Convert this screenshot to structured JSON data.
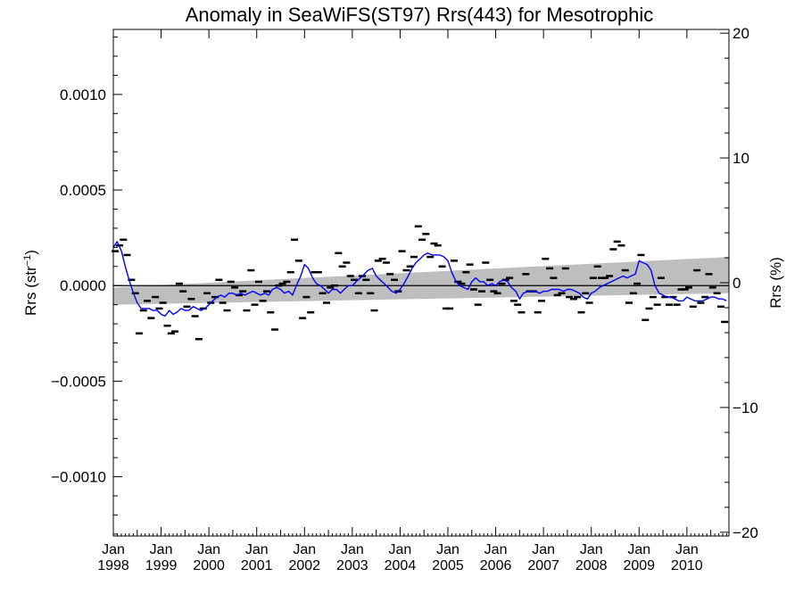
{
  "chart_data": {
    "type": "line",
    "title": "Anomaly in SeaWiFS(ST97) Rrs(443) for Mesotrophic",
    "ylabel_left_main": "Rrs (str",
    "ylabel_left_sup": "−1",
    "ylabel_left_close": ")",
    "ylabel_right": "Rrs (%)",
    "xlim": [
      1998.0,
      2010.88
    ],
    "ylim_left": [
      -0.00131,
      0.00134
    ],
    "ylim_right": [
      -20.3,
      20.3
    ],
    "grid": false,
    "x_ticks": [
      {
        "value": 1998,
        "line1": "Jan",
        "line2": "1998"
      },
      {
        "value": 1999,
        "line1": "Jan",
        "line2": "1999"
      },
      {
        "value": 2000,
        "line1": "Jan",
        "line2": "2000"
      },
      {
        "value": 2001,
        "line1": "Jan",
        "line2": "2001"
      },
      {
        "value": 2002,
        "line1": "Jan",
        "line2": "2002"
      },
      {
        "value": 2003,
        "line1": "Jan",
        "line2": "2003"
      },
      {
        "value": 2004,
        "line1": "Jan",
        "line2": "2004"
      },
      {
        "value": 2005,
        "line1": "Jan",
        "line2": "2005"
      },
      {
        "value": 2006,
        "line1": "Jan",
        "line2": "2006"
      },
      {
        "value": 2007,
        "line1": "Jan",
        "line2": "2007"
      },
      {
        "value": 2008,
        "line1": "Jan",
        "line2": "2008"
      },
      {
        "value": 2009,
        "line1": "Jan",
        "line2": "2009"
      },
      {
        "value": 2010,
        "line1": "Jan",
        "line2": "2010"
      }
    ],
    "y_ticks_left": [
      {
        "value": 0.001,
        "label": "0.0010"
      },
      {
        "value": 0.0005,
        "label": "0.0005"
      },
      {
        "value": 0.0,
        "label": "0.0000"
      },
      {
        "value": -0.0005,
        "label": "−0.0005"
      },
      {
        "value": -0.001,
        "label": "−0.0010"
      }
    ],
    "y_ticks_right": [
      {
        "value": 20,
        "label": "20"
      },
      {
        "value": 10,
        "label": "10"
      },
      {
        "value": 0,
        "label": "0"
      },
      {
        "value": -10,
        "label": "−10"
      },
      {
        "value": -20,
        "label": "−20"
      }
    ],
    "zero_line": 0.0,
    "trend_band": {
      "x": [
        1998.0,
        2010.88
      ],
      "upper": [
        -1e-05,
        0.00015
      ],
      "lower": [
        -0.0001,
        -4e-05
      ]
    },
    "colors": {
      "line": "#0000ff",
      "points": "#000000",
      "band": "#bebebe",
      "zero_line": "#000000"
    },
    "monthly_points": {
      "x": [
        1998.04,
        1998.13,
        1998.21,
        1998.29,
        1998.38,
        1998.46,
        1998.54,
        1998.63,
        1998.71,
        1998.79,
        1998.88,
        1998.96,
        1999.04,
        1999.13,
        1999.21,
        1999.29,
        1999.38,
        1999.46,
        1999.54,
        1999.63,
        1999.71,
        1999.79,
        1999.88,
        1999.96,
        2000.04,
        2000.13,
        2000.21,
        2000.29,
        2000.38,
        2000.46,
        2000.54,
        2000.63,
        2000.71,
        2000.79,
        2000.88,
        2000.96,
        2001.04,
        2001.13,
        2001.21,
        2001.29,
        2001.38,
        2001.46,
        2001.54,
        2001.63,
        2001.71,
        2001.79,
        2001.88,
        2001.96,
        2002.04,
        2002.13,
        2002.21,
        2002.29,
        2002.38,
        2002.46,
        2002.54,
        2002.63,
        2002.71,
        2002.79,
        2002.88,
        2002.96,
        2003.04,
        2003.13,
        2003.21,
        2003.29,
        2003.38,
        2003.46,
        2003.54,
        2003.63,
        2003.71,
        2003.79,
        2003.88,
        2003.96,
        2004.04,
        2004.13,
        2004.21,
        2004.29,
        2004.38,
        2004.46,
        2004.54,
        2004.63,
        2004.71,
        2004.79,
        2004.88,
        2004.96,
        2005.04,
        2005.13,
        2005.21,
        2005.29,
        2005.38,
        2005.46,
        2005.54,
        2005.63,
        2005.71,
        2005.79,
        2005.88,
        2005.96,
        2006.04,
        2006.13,
        2006.21,
        2006.29,
        2006.38,
        2006.46,
        2006.54,
        2006.63,
        2006.71,
        2006.79,
        2006.88,
        2006.96,
        2007.04,
        2007.13,
        2007.21,
        2007.29,
        2007.38,
        2007.46,
        2007.54,
        2007.63,
        2007.71,
        2007.79,
        2007.88,
        2007.96,
        2008.04,
        2008.13,
        2008.21,
        2008.29,
        2008.38,
        2008.46,
        2008.54,
        2008.63,
        2008.71,
        2008.79,
        2008.88,
        2008.96,
        2009.04,
        2009.13,
        2009.21,
        2009.29,
        2009.38,
        2009.46,
        2009.54,
        2009.63,
        2009.71,
        2009.79,
        2009.88,
        2009.96,
        2010.04,
        2010.13,
        2010.21,
        2010.29,
        2010.38,
        2010.46,
        2010.54,
        2010.63,
        2010.71,
        2010.79
      ],
      "y": [
        0.00018,
        0.00021,
        0.00024,
        0.00016,
        3e-05,
        -4e-05,
        -0.00025,
        -0.00013,
        -8e-05,
        -0.00017,
        -6e-05,
        -0.00012,
        -9e-05,
        -0.00021,
        -0.00025,
        -0.00024,
        1e-05,
        -3e-05,
        -0.00011,
        -7e-05,
        -0.00016,
        -0.00028,
        -0.00012,
        -4e-05,
        -9e-05,
        -6e-05,
        3e-05,
        -9e-05,
        -0.00013,
        2e-05,
        -1e-05,
        -5e-05,
        -3e-05,
        -0.00013,
        8e-05,
        -0.0001,
        2e-05,
        -8e-05,
        -3e-05,
        -0.00014,
        -0.00023,
        0.0,
        1e-05,
        2e-05,
        7e-05,
        0.00024,
        0.00013,
        -0.00017,
        -6e-05,
        -0.00014,
        7e-05,
        7e-05,
        -4e-05,
        -9e-05,
        -1e-05,
        0.0,
        0.00017,
        0.0001,
        0.00012,
        5e-05,
        3e-05,
        -4e-05,
        5e-05,
        3e-05,
        -4e-05,
        -0.00013,
        0.00013,
        0.00014,
        0.00012,
        6e-05,
        3e-05,
        -3e-05,
        0.00018,
        8e-05,
        0.0001,
        0.00015,
        0.00031,
        0.00024,
        0.00027,
        0.00015,
        0.00022,
        0.00021,
        0.0001,
        -0.00012,
        -0.00012,
        0.00013,
        2e-05,
        1e-05,
        7e-05,
        0.00011,
        -2e-05,
        -0.0001,
        -3e-05,
        0.00012,
        3e-05,
        -3e-05,
        -4e-05,
        1e-05,
        3e-05,
        4e-05,
        -8e-05,
        -0.0001,
        -0.00014,
        6e-05,
        -3e-05,
        -3e-05,
        -0.00014,
        -8e-05,
        0.00014,
        9e-05,
        4e-05,
        -5e-05,
        -4e-05,
        9e-05,
        -6e-05,
        -7e-05,
        -6e-05,
        -0.00014,
        -4e-05,
        -9e-05,
        4e-05,
        0.0001,
        4e-05,
        4e-05,
        5e-05,
        0.00019,
        0.00023,
        0.00021,
        8e-05,
        -9e-05,
        -4e-05,
        1e-05,
        0.00016,
        -0.00018,
        -0.00012,
        -6e-05,
        -0.0001,
        4e-05,
        -6e-05,
        -0.0001,
        -6e-05,
        -0.0001,
        -2e-05,
        -2e-05,
        -1e-05,
        -0.00011,
        8e-05,
        -9e-05,
        -6e-05,
        6e-05,
        -1e-05,
        -4e-05,
        -0.00011,
        -0.00019
      ]
    },
    "series": [
      {
        "x": [
          1998.0,
          1998.08,
          1998.17,
          1998.25,
          1998.33,
          1998.42,
          1998.5,
          1998.58,
          1998.67,
          1998.75,
          1998.83,
          1998.92,
          1999.0,
          1999.08,
          1999.17,
          1999.25,
          1999.33,
          1999.42,
          1999.5,
          1999.58,
          1999.67,
          1999.75,
          1999.83,
          1999.92,
          2000.0,
          2000.08,
          2000.17,
          2000.25,
          2000.33,
          2000.42,
          2000.5,
          2000.58,
          2000.67,
          2000.75,
          2000.83,
          2000.92,
          2001.0,
          2001.08,
          2001.17,
          2001.25,
          2001.33,
          2001.42,
          2001.5,
          2001.58,
          2001.67,
          2001.75,
          2001.83,
          2001.92,
          2002.0,
          2002.08,
          2002.17,
          2002.25,
          2002.33,
          2002.42,
          2002.5,
          2002.58,
          2002.67,
          2002.75,
          2002.83,
          2002.92,
          2003.0,
          2003.08,
          2003.17,
          2003.25,
          2003.33,
          2003.42,
          2003.5,
          2003.58,
          2003.67,
          2003.75,
          2003.83,
          2003.92,
          2004.0,
          2004.08,
          2004.17,
          2004.25,
          2004.33,
          2004.42,
          2004.5,
          2004.58,
          2004.67,
          2004.75,
          2004.83,
          2004.92,
          2005.0,
          2005.08,
          2005.17,
          2005.25,
          2005.33,
          2005.42,
          2005.5,
          2005.58,
          2005.67,
          2005.75,
          2005.83,
          2005.92,
          2006.0,
          2006.08,
          2006.17,
          2006.25,
          2006.33,
          2006.42,
          2006.5,
          2006.58,
          2006.67,
          2006.75,
          2006.83,
          2006.92,
          2007.0,
          2007.08,
          2007.17,
          2007.25,
          2007.33,
          2007.42,
          2007.5,
          2007.58,
          2007.67,
          2007.75,
          2007.83,
          2007.92,
          2008.0,
          2008.08,
          2008.17,
          2008.25,
          2008.33,
          2008.42,
          2008.5,
          2008.58,
          2008.67,
          2008.75,
          2008.83,
          2008.92,
          2009.0,
          2009.08,
          2009.17,
          2009.25,
          2009.33,
          2009.42,
          2009.5,
          2009.58,
          2009.67,
          2009.75,
          2009.83,
          2009.92,
          2010.0,
          2010.08,
          2010.17,
          2010.25,
          2010.33,
          2010.42,
          2010.5,
          2010.58,
          2010.67,
          2010.75,
          2010.83
        ],
        "values": [
          0.0002,
          0.00023,
          0.00018,
          0.0001,
          3e-05,
          -4e-05,
          -9e-05,
          -0.00012,
          -0.00012,
          -0.00012,
          -0.00013,
          -0.00013,
          -0.00015,
          -0.00016,
          -0.00013,
          -0.00015,
          -0.00014,
          -0.00012,
          -0.00013,
          -0.00013,
          -0.00011,
          -0.00012,
          -0.00013,
          -0.00012,
          -0.0001,
          -8e-05,
          -6e-05,
          -5e-05,
          -6e-05,
          -4e-05,
          -4e-05,
          -5e-05,
          -4e-05,
          -5e-05,
          -4e-05,
          -3e-05,
          -4e-05,
          -5e-05,
          -4e-05,
          -5e-05,
          -2e-05,
          -1e-05,
          -2e-05,
          -4e-05,
          -3e-05,
          -5e-05,
          0.0,
          5e-05,
          0.00011,
          9e-05,
          4e-05,
          1e-05,
          0.0,
          -2e-05,
          -4e-05,
          -2e-05,
          -2e-05,
          -4e-05,
          -2e-05,
          0.0,
          0.0,
          2e-05,
          4e-05,
          6e-05,
          8e-05,
          9e-05,
          5e-05,
          3e-05,
          1e-05,
          -1e-05,
          -3e-05,
          -4e-05,
          -2e-05,
          1e-05,
          5e-05,
          9e-05,
          0.00012,
          0.00014,
          0.00016,
          0.00017,
          0.00016,
          0.00016,
          0.00016,
          0.00015,
          0.00013,
          7e-05,
          2e-05,
          0.0,
          -1e-05,
          -2e-05,
          2e-05,
          4e-05,
          2e-05,
          2e-05,
          0.0,
          1e-05,
          0.0,
          2e-05,
          3e-05,
          2e-05,
          -1e-05,
          -3e-05,
          -7e-05,
          -4e-05,
          -3e-05,
          -3e-05,
          -3e-05,
          -4e-05,
          -3e-05,
          -3e-05,
          -2e-05,
          -2e-05,
          -2e-05,
          -3e-05,
          -2e-05,
          -2e-05,
          -3e-05,
          -4e-05,
          -6e-05,
          -7e-05,
          -4e-05,
          -3e-05,
          -1e-05,
          0.0,
          1e-05,
          2e-05,
          3e-05,
          4e-05,
          5e-05,
          4e-05,
          5e-05,
          6e-05,
          0.00013,
          0.00012,
          0.00011,
          8e-05,
          0.0,
          -4e-05,
          -5e-05,
          -6e-05,
          -6e-05,
          -7e-05,
          -8e-05,
          -8e-05,
          -6e-05,
          -7e-05,
          -8e-05,
          -8e-05,
          -8e-05,
          -7e-05,
          -6e-05,
          -6e-05,
          -7e-05,
          -7e-05,
          -8e-05
        ]
      }
    ]
  }
}
